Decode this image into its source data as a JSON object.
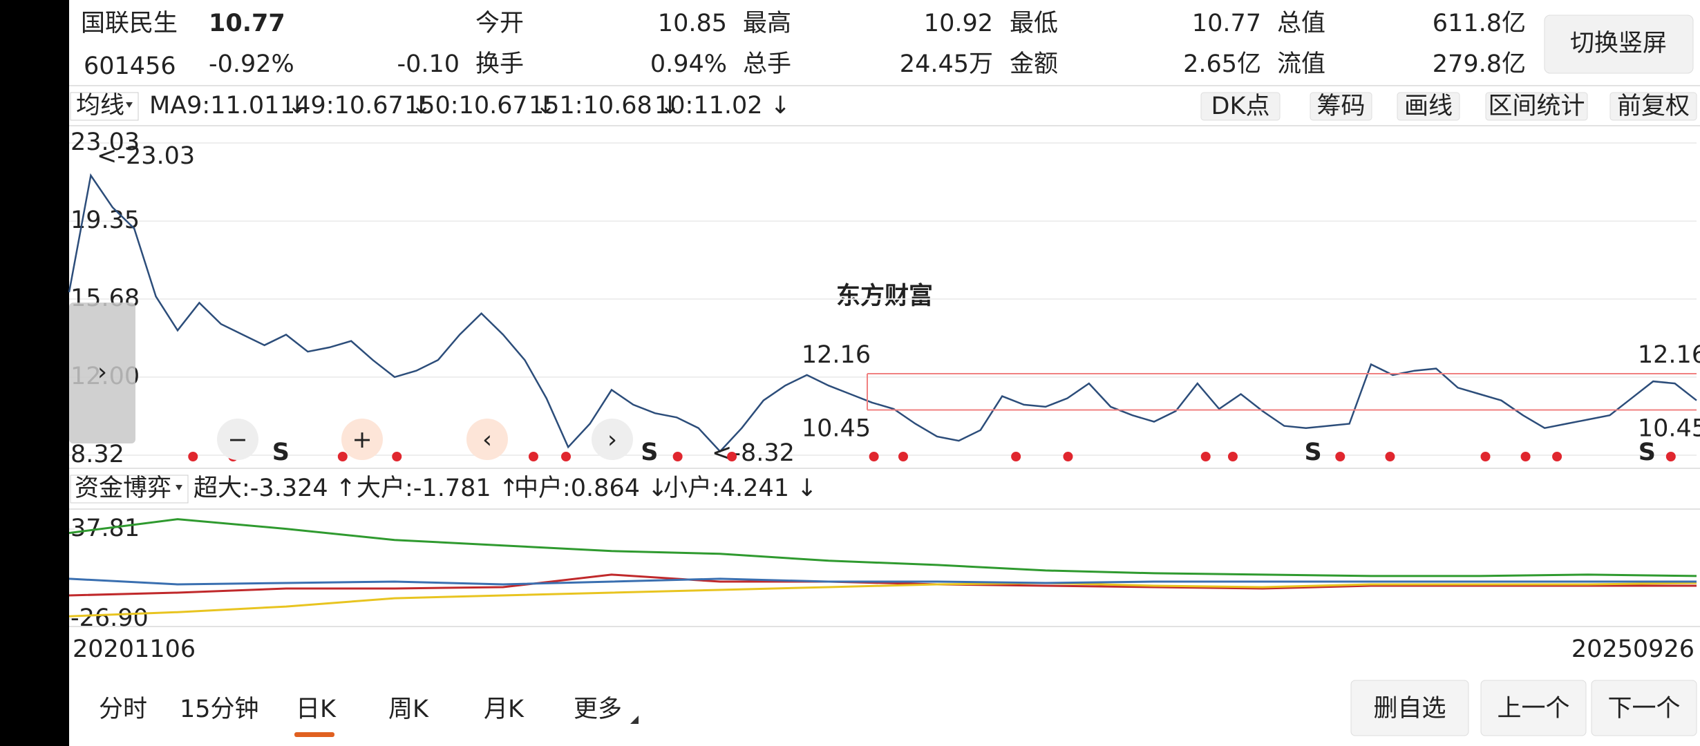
{
  "header": {
    "name": "国联民生",
    "price": "10.77",
    "code": "601456",
    "change_pct": "-0.92%",
    "change": "-0.10",
    "stats": [
      {
        "label": "今开",
        "value": "10.85",
        "color": "green"
      },
      {
        "label": "最高",
        "value": "10.92",
        "color": "red"
      },
      {
        "label": "最低",
        "value": "10.77",
        "color": "green"
      },
      {
        "label": "总值",
        "value": "611.8亿",
        "color": "black"
      },
      {
        "label": "换手",
        "value": "0.94%",
        "color": "black"
      },
      {
        "label": "总手",
        "value": "24.45万",
        "color": "black"
      },
      {
        "label": "金额",
        "value": "2.65亿",
        "color": "black"
      },
      {
        "label": "流值",
        "value": "279.8亿",
        "color": "black"
      }
    ],
    "button": "切换竖屏"
  },
  "toolbar": {
    "selector": "均线",
    "indicators": [
      {
        "text": "MA9:11.01 ↓",
        "color": "#222222"
      },
      {
        "text": "149:10.67 ↓",
        "color": "#e8b820"
      },
      {
        "text": "150:10.67 ↓",
        "color": "#c0288a"
      },
      {
        "text": "151:10.68 ↓",
        "color": "#1f9a2a"
      },
      {
        "text": "10:11.02 ↓",
        "color": "#d0262e"
      }
    ],
    "buttons": [
      "DK点",
      "筹码",
      "画线",
      "区间统计",
      "前复权"
    ]
  },
  "chart_data": [
    {
      "type": "line",
      "watermark": "东方财富",
      "ylim": [
        8.32,
        23.03
      ],
      "yticks": [
        23.03,
        19.35,
        15.68,
        {
          "value": 12,
          "label": "12.00"
        },
        8.32
      ],
      "annotations": [
        "<-23.03",
        "<-8.32"
      ],
      "range_lines": [
        12.16,
        10.45
      ],
      "range_labels": [
        "12.16",
        "10.45",
        "12.16",
        "10.45"
      ],
      "markers": [
        "S",
        "S",
        "S",
        "S"
      ],
      "series": [
        {
          "color": "#2c4d7a",
          "values": [
            16,
            21.5,
            20,
            19,
            15.8,
            14.2,
            15.5,
            14.5,
            14,
            13.5,
            14,
            13.2,
            13.4,
            13.7,
            12.8,
            12,
            12.3,
            12.8,
            14,
            15,
            14,
            12.8,
            11,
            8.7,
            9.8,
            11.4,
            10.7,
            10.3,
            10.1,
            9.6,
            8.5,
            9.6,
            10.9,
            11.6,
            12.1,
            11.6,
            11.2,
            10.8,
            10.5,
            9.8,
            9.2,
            9,
            9.5,
            11.1,
            10.7,
            10.6,
            11,
            11.7,
            10.6,
            10.2,
            9.9,
            10.4,
            11.7,
            10.5,
            11.2,
            10.4,
            9.7,
            9.6,
            9.7,
            9.8,
            12.6,
            12.1,
            12.3,
            12.4,
            11.5,
            11.2,
            10.9,
            10.2,
            9.6,
            9.8,
            10,
            10.2,
            11,
            11.8,
            11.7,
            10.9
          ]
        }
      ]
    },
    {
      "type": "line",
      "selector": "资金博弈",
      "ylim": [
        -26.9,
        37.81
      ],
      "yticks": [
        37.81,
        {
          "value": -26.9,
          "label": "-26.90"
        }
      ],
      "series": [
        {
          "name": "超大:-3.324 ↑",
          "color": "#c0292b",
          "values": [
            -10,
            -8,
            -5,
            -5,
            -4,
            5,
            0,
            0,
            -2,
            -3,
            -4,
            -5,
            -3,
            -3,
            -3,
            -3
          ]
        },
        {
          "name": "大户:-1.781 ↑",
          "color": "#e8c420",
          "values": [
            -25,
            -22,
            -18,
            -12,
            -10,
            -8,
            -6,
            -4,
            -2,
            -1,
            -3,
            -4,
            -2,
            -2,
            -2,
            -1
          ]
        },
        {
          "name": "中户:0.864 ↓",
          "color": "#3a6fb0",
          "values": [
            2,
            -2,
            -1,
            0,
            -2,
            0,
            2,
            0,
            0,
            -1,
            0,
            0,
            0,
            0,
            0,
            0
          ]
        },
        {
          "name": "小户:4.241 ↓",
          "color": "#2f9a2f",
          "values": [
            35,
            45,
            38,
            30,
            26,
            22,
            20,
            15,
            12,
            8,
            6,
            5,
            4,
            4,
            5,
            4
          ]
        }
      ],
      "x_range": [
        "20201106",
        "20250926"
      ]
    }
  ],
  "tabs": [
    "分时",
    "15分钟",
    "日K",
    "周K",
    "月K",
    "更多"
  ],
  "active_tab": 2,
  "actions": [
    "删自选",
    "上一个",
    "下一个"
  ]
}
